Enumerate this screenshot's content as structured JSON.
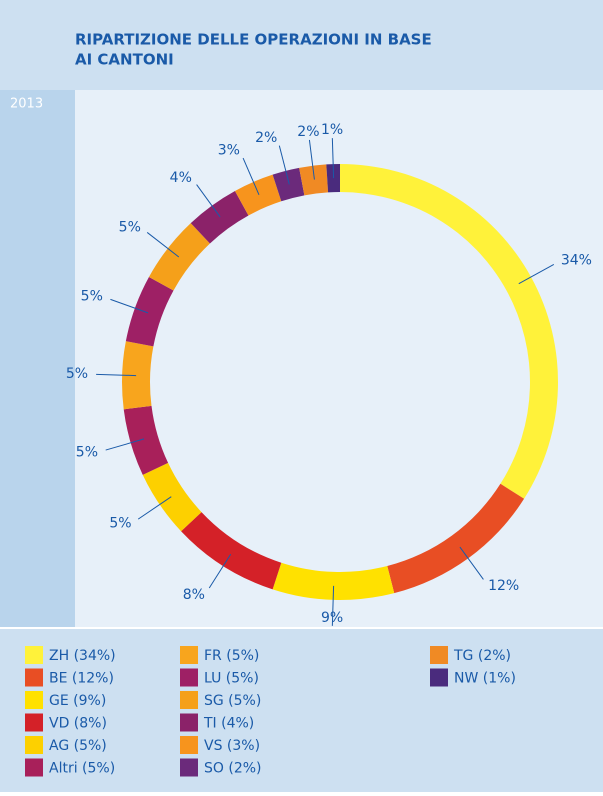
{
  "chart_data": {
    "type": "donut",
    "title": [
      "RIPARTIZIONE DELLE OPERAZIONI IN BASE",
      "AI CANTONI"
    ],
    "subtitle": "2013",
    "categories": [
      "ZH (34%)",
      "BE (12%)",
      "GE (9%)",
      "VD (8%)",
      "AG (5%)",
      "Altri (5%)",
      "FR (5%)",
      "LU (5%)",
      "SG (5%)",
      "TI  (4%)",
      "VS  (3%)",
      "SO  (2%)",
      "TG  (2%)",
      "NW  (1%)"
    ],
    "values": [
      34,
      12,
      9,
      8,
      5,
      5,
      5,
      5,
      5,
      4,
      3,
      2,
      2,
      1
    ],
    "value_labels": [
      "34%",
      "12%",
      "9%",
      "8%",
      "5%",
      "5%",
      "5%",
      "5%",
      "5%",
      "4%",
      "3%",
      "2%",
      "2%",
      "1%"
    ],
    "colors": [
      "#fff23a",
      "#e84e24",
      "#ffe100",
      "#d42128",
      "#fdd000",
      "#a8205a",
      "#f8a51d",
      "#9e2065",
      "#f5a01a",
      "#8b2269",
      "#f7941d",
      "#6b2a7b",
      "#f08a24",
      "#4a2b7d"
    ]
  }
}
